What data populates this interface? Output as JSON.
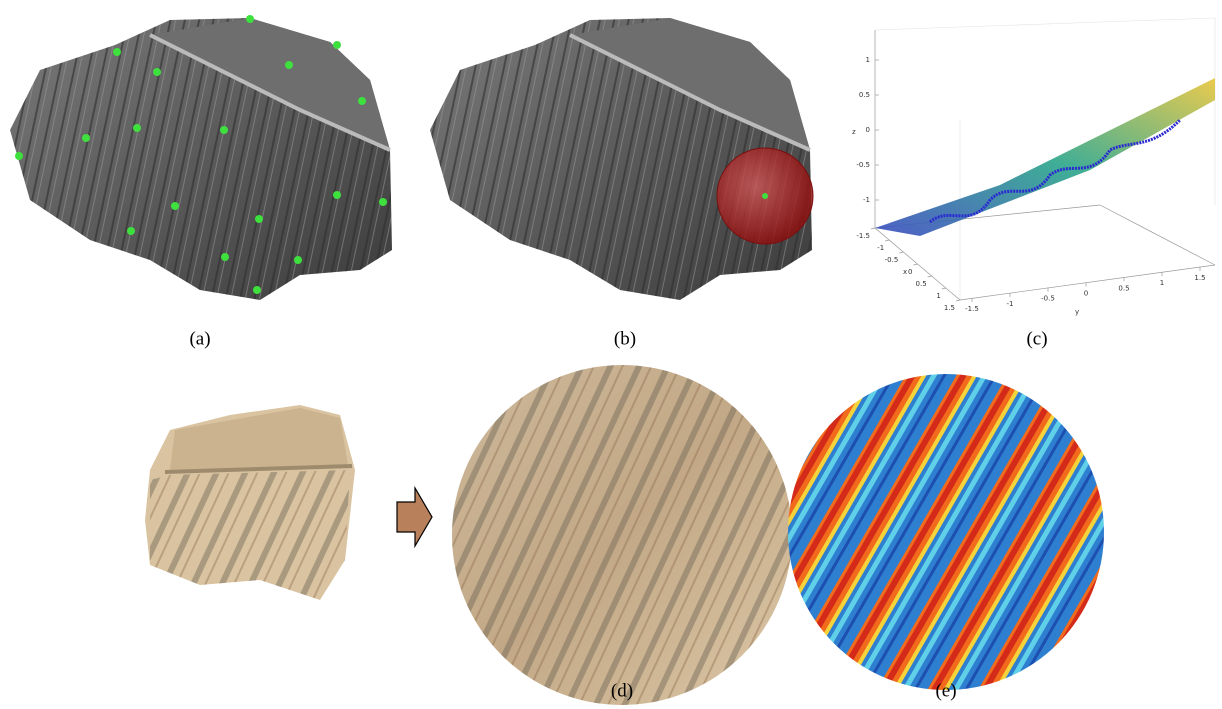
{
  "captions": [
    "(a)",
    "(b)",
    "(c)",
    "(d)",
    "(e)"
  ],
  "plot": {
    "zlabel": "z",
    "xlabel": "x",
    "ylabel": "y",
    "zticks": [
      1,
      0.5,
      0,
      -0.5,
      -1
    ],
    "xticks": [
      -1.5,
      -1,
      -0.5,
      0,
      0.5,
      1,
      1.5
    ],
    "yticks": [
      -1.5,
      -1,
      -0.5,
      0,
      0.5,
      1,
      1.5
    ]
  }
}
